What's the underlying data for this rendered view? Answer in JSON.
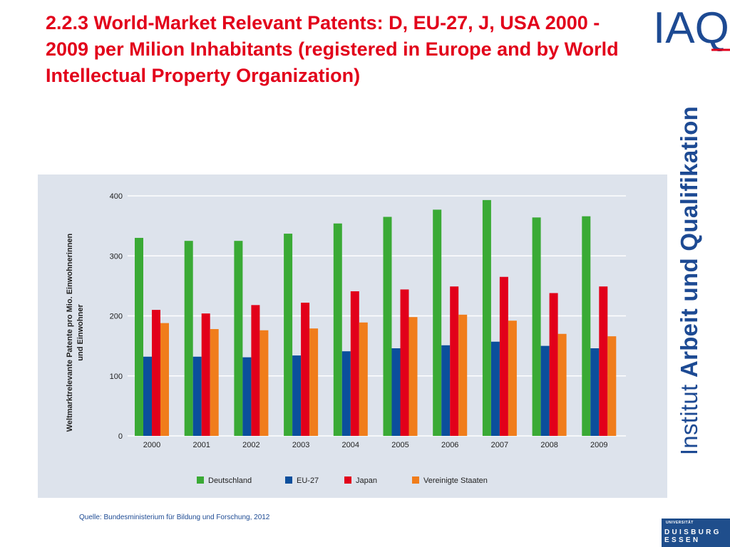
{
  "slide": {
    "title": "2.2.3 World-Market Relevant Patents: D, EU-27, J, USA 2000 - 2009 per Milion Inhabitants (registered in Europe and by World Intellectual Property Organization)",
    "source": "Quelle: Bundesministerium für Bildung und Forschung, 2012",
    "title_color": "#e2001a"
  },
  "branding": {
    "logo_text": "IAQ",
    "side_text_light": "Institut ",
    "side_text_bold": "Arbeit und Qualifikation",
    "university_line1": "UNIVERSITÄT",
    "university_line2": "DUISBURG",
    "university_line3": "ESSEN",
    "brand_color": "#1d4a93",
    "accent_color": "#e2001a"
  },
  "chart_data": {
    "type": "bar",
    "ylabel": "Weltmarktrelevante Patente pro Mio. Einwohnerinnen und Einwohner",
    "ylabel_line1": "Weltmarktrelevante Patente pro Mio. Einwohnerinnen",
    "ylabel_line2": "und Einwohner",
    "xlabel": "",
    "ylim": [
      0,
      400
    ],
    "yticks": [
      "0",
      "100",
      "200",
      "300",
      "400"
    ],
    "grid": true,
    "legend_position": "bottom",
    "categories": [
      "2000",
      "2001",
      "2002",
      "2003",
      "2004",
      "2005",
      "2006",
      "2007",
      "2008",
      "2009"
    ],
    "series": [
      {
        "name": "Deutschland",
        "color": "#3aaa35",
        "values": [
          330,
          325,
          325,
          337,
          354,
          365,
          377,
          393,
          364,
          366
        ]
      },
      {
        "name": "EU-27",
        "color": "#0b4f9c",
        "values": [
          132,
          132,
          131,
          134,
          141,
          146,
          151,
          157,
          150,
          146
        ]
      },
      {
        "name": "Japan",
        "color": "#e2001a",
        "values": [
          210,
          204,
          218,
          222,
          241,
          244,
          249,
          265,
          238,
          249
        ]
      },
      {
        "name": "Vereinigte Staaten",
        "color": "#f07d1b",
        "values": [
          188,
          178,
          176,
          179,
          189,
          198,
          202,
          192,
          170,
          166
        ]
      }
    ]
  }
}
